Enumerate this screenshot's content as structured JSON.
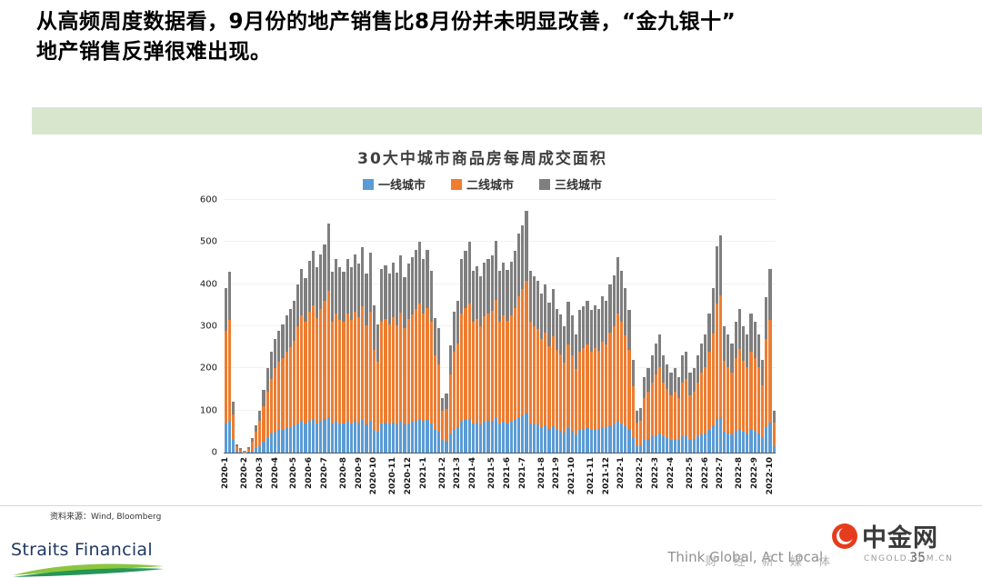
{
  "slide": {
    "heading_line1": "从高频周度数据看，9月份的地产销售比8月份并未明显改善，“金九银十”",
    "heading_line2": "地产销售反弹很难出现。",
    "source_note": "资料来源：Wind, Bloomberg",
    "footer_right_text": "Think Global, Act Local.",
    "page_number": "35",
    "logo_text": "Straits Financial"
  },
  "watermark": {
    "brand": "中金网",
    "domain": "CNGOLD.COM.CN",
    "tagline": "财 经 新 媒 体"
  },
  "chart_data": {
    "type": "bar",
    "stacked": true,
    "title": "30大中城市商品房每周成交面积",
    "xlabel": "",
    "ylabel": "",
    "ylim": [
      0,
      600
    ],
    "yticks": [
      0,
      100,
      200,
      300,
      400,
      500,
      600
    ],
    "grid": "faint-horizontal",
    "legend_position": "top-center",
    "colors": [
      "#5B9BD5",
      "#ED7D31",
      "#7F7F7F"
    ],
    "months": [
      {
        "label": "2020-1",
        "weeks": 5
      },
      {
        "label": "2020-2",
        "weeks": 4
      },
      {
        "label": "2020-3",
        "weeks": 4
      },
      {
        "label": "2020-4",
        "weeks": 5
      },
      {
        "label": "2020-5",
        "weeks": 4
      },
      {
        "label": "2020-6",
        "weeks": 4
      },
      {
        "label": "2020-7",
        "weeks": 5
      },
      {
        "label": "2020-8",
        "weeks": 4
      },
      {
        "label": "2020-9",
        "weeks": 4
      },
      {
        "label": "2020-10",
        "weeks": 5
      },
      {
        "label": "2020-11",
        "weeks": 4
      },
      {
        "label": "2020-12",
        "weeks": 4
      },
      {
        "label": "2021-1",
        "weeks": 5
      },
      {
        "label": "2021-2",
        "weeks": 4
      },
      {
        "label": "2021-3",
        "weeks": 4
      },
      {
        "label": "2021-4",
        "weeks": 5
      },
      {
        "label": "2021-5",
        "weeks": 4
      },
      {
        "label": "2021-6",
        "weeks": 4
      },
      {
        "label": "2021-7",
        "weeks": 5
      },
      {
        "label": "2021-8",
        "weeks": 4
      },
      {
        "label": "2021-9",
        "weeks": 4
      },
      {
        "label": "2021-10",
        "weeks": 5
      },
      {
        "label": "2021-11",
        "weeks": 4
      },
      {
        "label": "2021-12",
        "weeks": 4
      },
      {
        "label": "2022-1",
        "weeks": 5
      },
      {
        "label": "2022-2",
        "weeks": 4
      },
      {
        "label": "2022-3",
        "weeks": 4
      },
      {
        "label": "2022-4",
        "weeks": 5
      },
      {
        "label": "2022-5",
        "weeks": 4
      },
      {
        "label": "2022-6",
        "weeks": 4
      },
      {
        "label": "2022-7",
        "weeks": 5
      },
      {
        "label": "2022-8",
        "weeks": 4
      },
      {
        "label": "2022-9",
        "weeks": 4
      },
      {
        "label": "2022-10",
        "weeks": 2
      }
    ],
    "series": [
      {
        "name": "一线城市",
        "values": [
          70,
          75,
          30,
          5,
          2,
          1,
          2,
          5,
          10,
          15,
          25,
          35,
          45,
          50,
          55,
          55,
          60,
          60,
          65,
          70,
          75,
          70,
          75,
          80,
          70,
          75,
          80,
          85,
          70,
          75,
          70,
          70,
          75,
          70,
          75,
          72,
          78,
          68,
          75,
          55,
          50,
          70,
          72,
          70,
          72,
          68,
          75,
          66,
          70,
          74,
          76,
          80,
          75,
          78,
          70,
          55,
          50,
          30,
          28,
          45,
          55,
          60,
          75,
          78,
          80,
          70,
          72,
          68,
          73,
          75,
          76,
          82,
          70,
          74,
          70,
          74,
          78,
          84,
          88,
          92,
          70,
          68,
          66,
          60,
          64,
          56,
          62,
          55,
          52,
          48,
          58,
          52,
          44,
          54,
          56,
          58,
          54,
          56,
          54,
          60,
          58,
          64,
          68,
          75,
          70,
          63,
          55,
          36,
          16,
          18,
          30,
          33,
          38,
          42,
          46,
          38,
          34,
          31,
          33,
          30,
          38,
          40,
          31,
          33,
          38,
          43,
          46,
          54,
          64,
          80,
          85,
          50,
          46,
          43,
          51,
          56,
          50,
          46,
          54,
          51,
          46,
          36,
          61,
          72,
          16
        ]
      },
      {
        "name": "二线城市",
        "values": [
          220,
          240,
          60,
          10,
          5,
          3,
          6,
          20,
          40,
          60,
          85,
          110,
          130,
          150,
          160,
          170,
          180,
          190,
          200,
          230,
          250,
          240,
          260,
          270,
          250,
          265,
          280,
          300,
          240,
          255,
          245,
          240,
          255,
          245,
          260,
          250,
          270,
          235,
          260,
          190,
          165,
          240,
          245,
          235,
          250,
          235,
          258,
          230,
          248,
          255,
          265,
          275,
          255,
          265,
          240,
          175,
          160,
          70,
          75,
          140,
          185,
          200,
          255,
          265,
          275,
          240,
          245,
          232,
          250,
          255,
          260,
          280,
          240,
          252,
          242,
          252,
          266,
          288,
          300,
          315,
          240,
          232,
          228,
          210,
          220,
          196,
          214,
          188,
          182,
          166,
          198,
          180,
          154,
          186,
          192,
          198,
          186,
          192,
          188,
          204,
          198,
          220,
          232,
          256,
          240,
          216,
          188,
          122,
          56,
          58,
          100,
          112,
          128,
          144,
          156,
          128,
          118,
          106,
          112,
          100,
          128,
          134,
          106,
          112,
          128,
          146,
          156,
          186,
          218,
          274,
          288,
          168,
          156,
          146,
          174,
          190,
          168,
          156,
          186,
          174,
          156,
          124,
          208,
          244,
          56
        ]
      },
      {
        "name": "三线城市",
        "values": [
          100,
          115,
          30,
          5,
          3,
          1,
          4,
          10,
          15,
          25,
          40,
          55,
          65,
          70,
          75,
          80,
          85,
          90,
          95,
          100,
          110,
          105,
          120,
          130,
          120,
          130,
          135,
          160,
          120,
          130,
          125,
          120,
          130,
          125,
          135,
          128,
          140,
          122,
          140,
          105,
          90,
          125,
          128,
          120,
          130,
          125,
          135,
          120,
          130,
          135,
          140,
          145,
          130,
          138,
          122,
          90,
          85,
          30,
          37,
          70,
          95,
          100,
          130,
          137,
          145,
          122,
          125,
          118,
          128,
          130,
          132,
          140,
          122,
          126,
          122,
          128,
          136,
          148,
          152,
          168,
          122,
          118,
          114,
          108,
          115,
          104,
          112,
          98,
          94,
          86,
          102,
          95,
          82,
          98,
          100,
          104,
          98,
          102,
          98,
          108,
          104,
          116,
          120,
          132,
          122,
          112,
          97,
          62,
          28,
          30,
          50,
          56,
          64,
          74,
          78,
          64,
          58,
          53,
          55,
          50,
          64,
          66,
          53,
          55,
          64,
          71,
          78,
          90,
          108,
          136,
          142,
          82,
          78,
          71,
          85,
          94,
          82,
          78,
          90,
          85,
          78,
          60,
          101,
          119,
          28
        ]
      }
    ]
  }
}
